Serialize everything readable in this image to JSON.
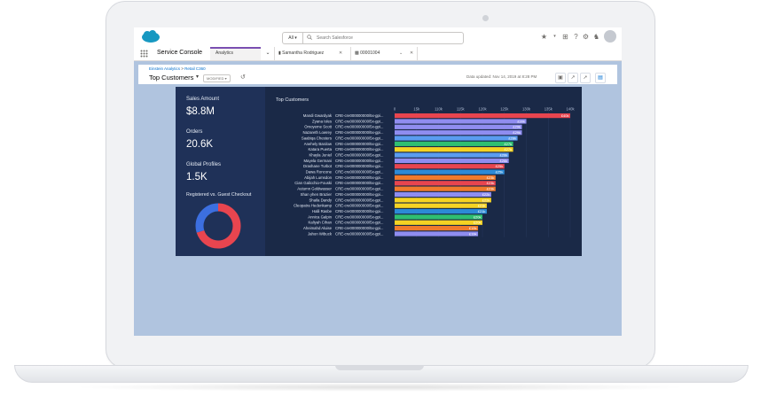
{
  "topbar": {
    "search_scope": "All",
    "search_placeholder": "Search Salesforce"
  },
  "navbar": {
    "app_name": "Service Console",
    "tabs": [
      {
        "label": "Analytics"
      },
      {
        "label": "Samantha Rodriguez"
      },
      {
        "label": "00001004"
      }
    ]
  },
  "header": {
    "breadcrumb_root": "Einstein Analytics",
    "breadcrumb_sep": " > ",
    "breadcrumb_leaf": "Retail C360",
    "title": "Top Customers",
    "status_pill": "MODIFIED",
    "updated": "Data updated: Nov 14, 2019 at 8:28 PM"
  },
  "kpis": [
    {
      "label": "Sales Amount",
      "value": "$8.8M"
    },
    {
      "label": "Orders",
      "value": "20.6K"
    },
    {
      "label": "Global Profiles",
      "value": "1.5K"
    }
  ],
  "donut": {
    "label": "Registered vs. Guest Checkout",
    "colors": [
      "#e8454f",
      "#3c6fe0"
    ],
    "shares": [
      0.7,
      0.3
    ]
  },
  "chart_data": {
    "type": "bar",
    "title": "Top Customers",
    "x_ticks": [
      "0",
      "15k",
      "110k",
      "115k",
      "120k",
      "125k",
      "130k",
      "135k",
      "140k"
    ],
    "categories": [
      {
        "name": "Mandi Gwardyak",
        "id": "CRE-cre000000000/5x-gpi..."
      },
      {
        "name": "Zyana Isles",
        "id": "CRE-cre000000000/5x-gpi..."
      },
      {
        "name": "Omoyeme Scott",
        "id": "CRE-cre000000000/5x-gpi..."
      },
      {
        "name": "Nazareth Lowrey",
        "id": "CRE-cre000000000/5x-gpi..."
      },
      {
        "name": "Saabiqa Chesters",
        "id": "CRE-cre000000000/5x-gpi..."
      },
      {
        "name": "Anehely Bardow",
        "id": "CRE-cre000000000/5x-gpi..."
      },
      {
        "name": "Katara Puerta",
        "id": "CRE-cre000000000/5x-gpi..."
      },
      {
        "name": "Khayla Juniel",
        "id": "CRE-cre000000000/5x-gpi..."
      },
      {
        "name": "Mayela Germani",
        "id": "CRE-cre000000000/5x-gpi..."
      },
      {
        "name": "Drashane Turbot",
        "id": "CRE-cre000000000/5x-gpi..."
      },
      {
        "name": "Dawa Roncone",
        "id": "CRE-cre000000000/5x-gpi..."
      },
      {
        "name": "Abijah Lumsdon",
        "id": "CRE-cre000000000/5x-gpi..."
      },
      {
        "name": "Cian Galicchio-Fouski",
        "id": "CRE-cre000000000/5x-gpi..."
      },
      {
        "name": "Autumn Goldwasser",
        "id": "CRE-cre000000000/5x-gpi..."
      },
      {
        "name": "Shan yhen Brazier",
        "id": "CRE-cre000000000/5x-gpi..."
      },
      {
        "name": "Shaila Dandy",
        "id": "CRE-cre000000000/5x-gpi..."
      },
      {
        "name": "Cleopatra Hedenkamp",
        "id": "CRE-cre000000000/5x-gpi..."
      },
      {
        "name": "Halli Rasbe",
        "id": "CRE-cre000000000/5x-gpi..."
      },
      {
        "name": "Annica Galpin",
        "id": "CRE-cre000000000/5x-gpi..."
      },
      {
        "name": "Kaliyah Cihan",
        "id": "CRE-cre000000000/5x-gpi..."
      },
      {
        "name": "Aheimahd Aluise",
        "id": "CRE-cre000000000/5x-gpi..."
      },
      {
        "name": "Jahon Wibuck",
        "id": "CRE-cre000000000/5x-gpi..."
      }
    ],
    "values": [
      40,
      30,
      29,
      29,
      28,
      27,
      27,
      26,
      26,
      25,
      25,
      23,
      23,
      23,
      22,
      22,
      21,
      21,
      20,
      20,
      19,
      19
    ],
    "value_labels": [
      "£40k",
      "£30k",
      "£29k",
      "£29k",
      "£28k",
      "£27k",
      "£27k",
      "£26k",
      "£26k",
      "£25k",
      "£25k",
      "£23k",
      "£23k",
      "£23k",
      "£22k",
      "£22k",
      "£21k",
      "£21k",
      "£20k",
      "£20k",
      "£19k",
      "£19k"
    ],
    "colors": [
      "#e8454f",
      "#8f8df0",
      "#8f8df0",
      "#8f8df0",
      "#5a9cf0",
      "#2fbf71",
      "#f5d323",
      "#5a9cf0",
      "#8f8df0",
      "#e8454f",
      "#2c8ad6",
      "#f07a2c",
      "#e8454f",
      "#f07a2c",
      "#8f8df0",
      "#f5d323",
      "#f5d323",
      "#2c8ad6",
      "#2fbf71",
      "#f5d323",
      "#f07a2c",
      "#8f8df0"
    ],
    "xlim": [
      0,
      40
    ]
  }
}
